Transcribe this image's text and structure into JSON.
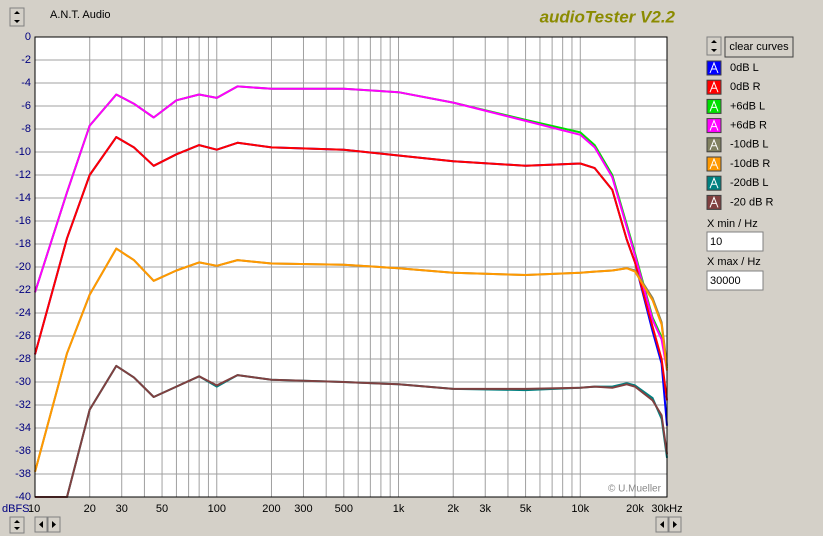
{
  "window": {
    "header": "A.N.T. Audio",
    "clear_button": "clear curves",
    "xmin_label": "X min / Hz",
    "xmax_label": "X max / Hz"
  },
  "chart_data": {
    "type": "line",
    "title": "audioTester V2.2",
    "annotation": "© U.Mueller",
    "y_unit": "dBFS",
    "xscale": "log",
    "grid": true,
    "xlim": [
      10,
      30000
    ],
    "ylim": [
      -40,
      0
    ],
    "xticks": [
      10,
      20,
      30,
      50,
      100,
      200,
      300,
      500,
      {
        "value": 1000,
        "label": "1k"
      },
      {
        "value": 2000,
        "label": "2k"
      },
      {
        "value": 3000,
        "label": "3k"
      },
      {
        "value": 5000,
        "label": "5k"
      },
      {
        "value": 10000,
        "label": "10k"
      },
      {
        "value": 20000,
        "label": "20k"
      },
      {
        "value": 30000,
        "label": "30kHz"
      }
    ],
    "xminor_ticks": [
      40,
      60,
      70,
      80,
      90,
      400,
      600,
      700,
      800,
      900,
      4000,
      6000,
      7000,
      8000,
      9000
    ],
    "yticks": [
      0,
      -2,
      -4,
      -6,
      -8,
      -10,
      -12,
      -14,
      -16,
      -18,
      -20,
      -22,
      -24,
      -26,
      -28,
      -30,
      -32,
      -34,
      -36,
      -38,
      -40
    ],
    "x": [
      10,
      15,
      20,
      28,
      35,
      45,
      60,
      80,
      100,
      130,
      200,
      500,
      1000,
      2000,
      5000,
      10000,
      12000,
      15000,
      18000,
      20000,
      25000,
      28000,
      30000
    ],
    "series": [
      {
        "name": "0dB L",
        "color": "#0000ff",
        "values": [
          -27.6,
          -17.5,
          -12.0,
          -8.7,
          -9.6,
          -11.2,
          -10.2,
          -9.4,
          -9.8,
          -9.2,
          -9.6,
          -9.8,
          -10.3,
          -10.8,
          -11.2,
          -11.0,
          -11.4,
          -13.3,
          -17.6,
          -19.6,
          -25.6,
          -28.4,
          -33.8
        ]
      },
      {
        "name": "0dB R",
        "color": "#ff0000",
        "values": [
          -27.6,
          -17.5,
          -12.0,
          -8.7,
          -9.6,
          -11.2,
          -10.2,
          -9.4,
          -9.8,
          -9.2,
          -9.6,
          -9.8,
          -10.3,
          -10.8,
          -11.2,
          -11.0,
          -11.4,
          -13.3,
          -17.6,
          -19.6,
          -25.2,
          -28.0,
          -31.6
        ]
      },
      {
        "name": "+6dB L",
        "color": "#00e000",
        "values": [
          -22.2,
          -13.5,
          -7.7,
          -5.0,
          -5.8,
          -7.0,
          -5.5,
          -5.0,
          -5.3,
          -4.3,
          -4.5,
          -4.5,
          -4.8,
          -5.7,
          -7.2,
          -8.3,
          -9.4,
          -12.0,
          -16.3,
          -18.8,
          -24.4,
          -26.1,
          -28.8
        ]
      },
      {
        "name": "+6dB R",
        "color": "#ff00ff",
        "values": [
          -22.2,
          -13.5,
          -7.7,
          -5.0,
          -5.8,
          -7.0,
          -5.5,
          -5.0,
          -5.3,
          -4.3,
          -4.5,
          -4.5,
          -4.8,
          -5.7,
          -7.3,
          -8.5,
          -9.6,
          -12.2,
          -16.5,
          -19.0,
          -24.6,
          -26.3,
          -29.0
        ]
      },
      {
        "name": "-10dB L",
        "color": "#808060",
        "values": [
          -37.8,
          -27.5,
          -22.4,
          -18.4,
          -19.4,
          -21.2,
          -20.3,
          -19.6,
          -19.9,
          -19.4,
          -19.7,
          -19.8,
          -20.1,
          -20.5,
          -20.7,
          -20.5,
          -20.4,
          -20.3,
          -20.1,
          -20.3,
          -22.7,
          -24.8,
          -28.6
        ]
      },
      {
        "name": "-10dB R",
        "color": "#ff9900",
        "values": [
          -37.8,
          -27.5,
          -22.4,
          -18.4,
          -19.4,
          -21.2,
          -20.3,
          -19.6,
          -19.9,
          -19.4,
          -19.7,
          -19.8,
          -20.1,
          -20.5,
          -20.7,
          -20.5,
          -20.4,
          -20.3,
          -20.1,
          -20.4,
          -22.9,
          -25.0,
          -29.0
        ]
      },
      {
        "name": "-20dB L",
        "color": "#008080",
        "values": [
          -40,
          -40,
          -32.4,
          -28.6,
          -29.6,
          -31.3,
          -30.4,
          -29.5,
          -30.4,
          -29.4,
          -29.8,
          -30.0,
          -30.2,
          -30.6,
          -30.7,
          -30.5,
          -30.4,
          -30.4,
          -30.1,
          -30.3,
          -31.4,
          -33.2,
          -36.6
        ]
      },
      {
        "name": "-20 dB R",
        "color": "#804040",
        "values": [
          -40,
          -40,
          -32.4,
          -28.6,
          -29.6,
          -31.3,
          -30.4,
          -29.5,
          -30.3,
          -29.4,
          -29.8,
          -30.0,
          -30.2,
          -30.6,
          -30.6,
          -30.5,
          -30.4,
          -30.5,
          -30.2,
          -30.4,
          -31.6,
          -32.9,
          -36.3
        ]
      }
    ]
  }
}
